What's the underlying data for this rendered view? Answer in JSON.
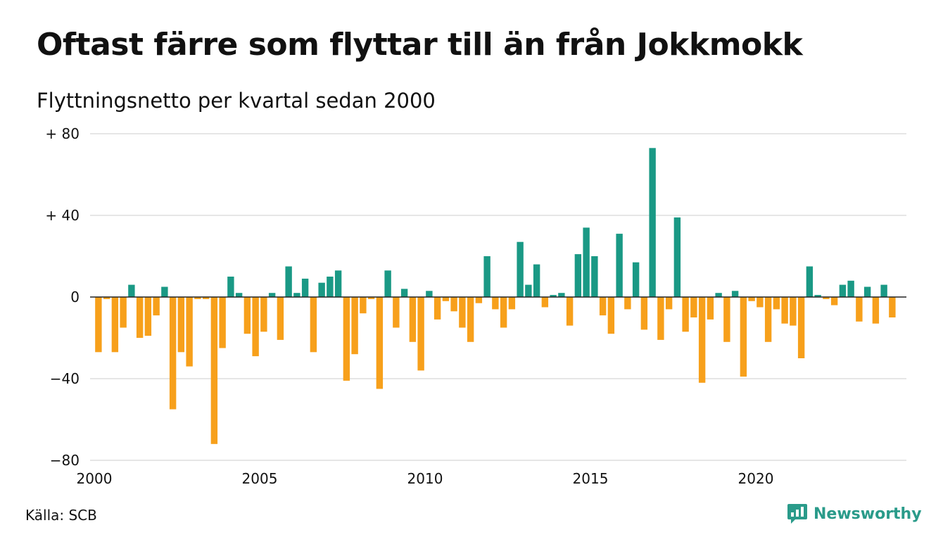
{
  "title": "Oftast färre som flyttar till än från Jokkmokk",
  "subtitle": "Flyttningsnetto per kvartal sedan 2000",
  "source": "Källa: SCB",
  "brand": {
    "name": "Newsworthy",
    "icon": "newsworthy-logo-icon"
  },
  "colors": {
    "positive": "#1a9985",
    "negative": "#f7a01b",
    "grid": "#dddddd",
    "zero_line": "#222222"
  },
  "chart_data": {
    "type": "bar",
    "title": "Oftast färre som flyttar till än från Jokkmokk",
    "subtitle": "Flyttningsnetto per kvartal sedan 2000",
    "xlabel": "",
    "ylabel": "",
    "ylim": [
      -80,
      80
    ],
    "yticks": [
      80,
      40,
      0,
      -40,
      -80
    ],
    "ytick_labels": [
      "+ 80",
      "+ 40",
      "0",
      "−40",
      "−80"
    ],
    "xticks": [
      2000,
      2005,
      2010,
      2015,
      2020
    ],
    "xtick_labels": [
      "2000",
      "2005",
      "2010",
      "2015",
      "2020"
    ],
    "grid": true,
    "legend": "none",
    "x_start": "2000 Q1",
    "periods_per_year": 4,
    "values": [
      -27,
      -1,
      -27,
      -15,
      6,
      -20,
      -19,
      -9,
      5,
      -55,
      -27,
      -34,
      -1,
      -1,
      -72,
      -25,
      10,
      2,
      -18,
      -29,
      -17,
      2,
      -21,
      15,
      2,
      9,
      -27,
      7,
      10,
      13,
      -41,
      -28,
      -8,
      -1,
      -45,
      13,
      -15,
      4,
      -22,
      -36,
      3,
      -11,
      -2,
      -7,
      -15,
      -22,
      -3,
      20,
      -6,
      -15,
      -6,
      27,
      6,
      16,
      -5,
      1,
      2,
      -14,
      21,
      34,
      20,
      -9,
      -18,
      31,
      -6,
      17,
      -16,
      73,
      -21,
      -6,
      39,
      -17,
      -10,
      -42,
      -11,
      2,
      -22,
      3,
      -39,
      -2,
      -5,
      -22,
      -6,
      -13,
      -14,
      -30,
      15,
      1,
      -1,
      -4,
      6,
      8,
      -12,
      5,
      -13,
      6,
      -10
    ]
  }
}
